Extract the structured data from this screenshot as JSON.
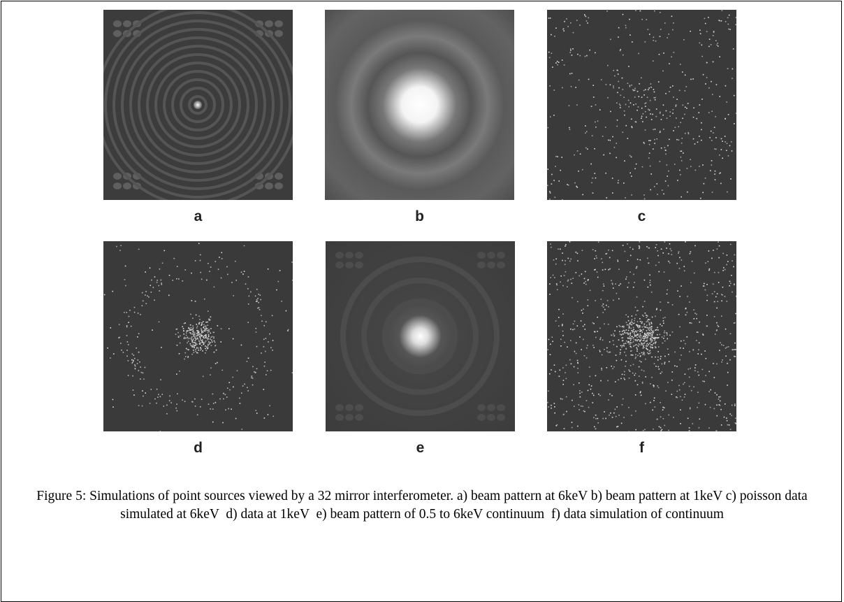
{
  "figure": {
    "panels": [
      {
        "label": "a"
      },
      {
        "label": "b"
      },
      {
        "label": "c"
      },
      {
        "label": "d"
      },
      {
        "label": "e"
      },
      {
        "label": "f"
      }
    ],
    "caption": "Figure 5: Simulations of point sources viewed by a 32 mirror interferometer. a) beam pattern at 6keV b) beam pattern at 1keV c) poisson data simulated at 6keV  d) data at 1keV  e) beam pattern of 0.5 to 6keV continuum  f) data simulation of continuum"
  }
}
